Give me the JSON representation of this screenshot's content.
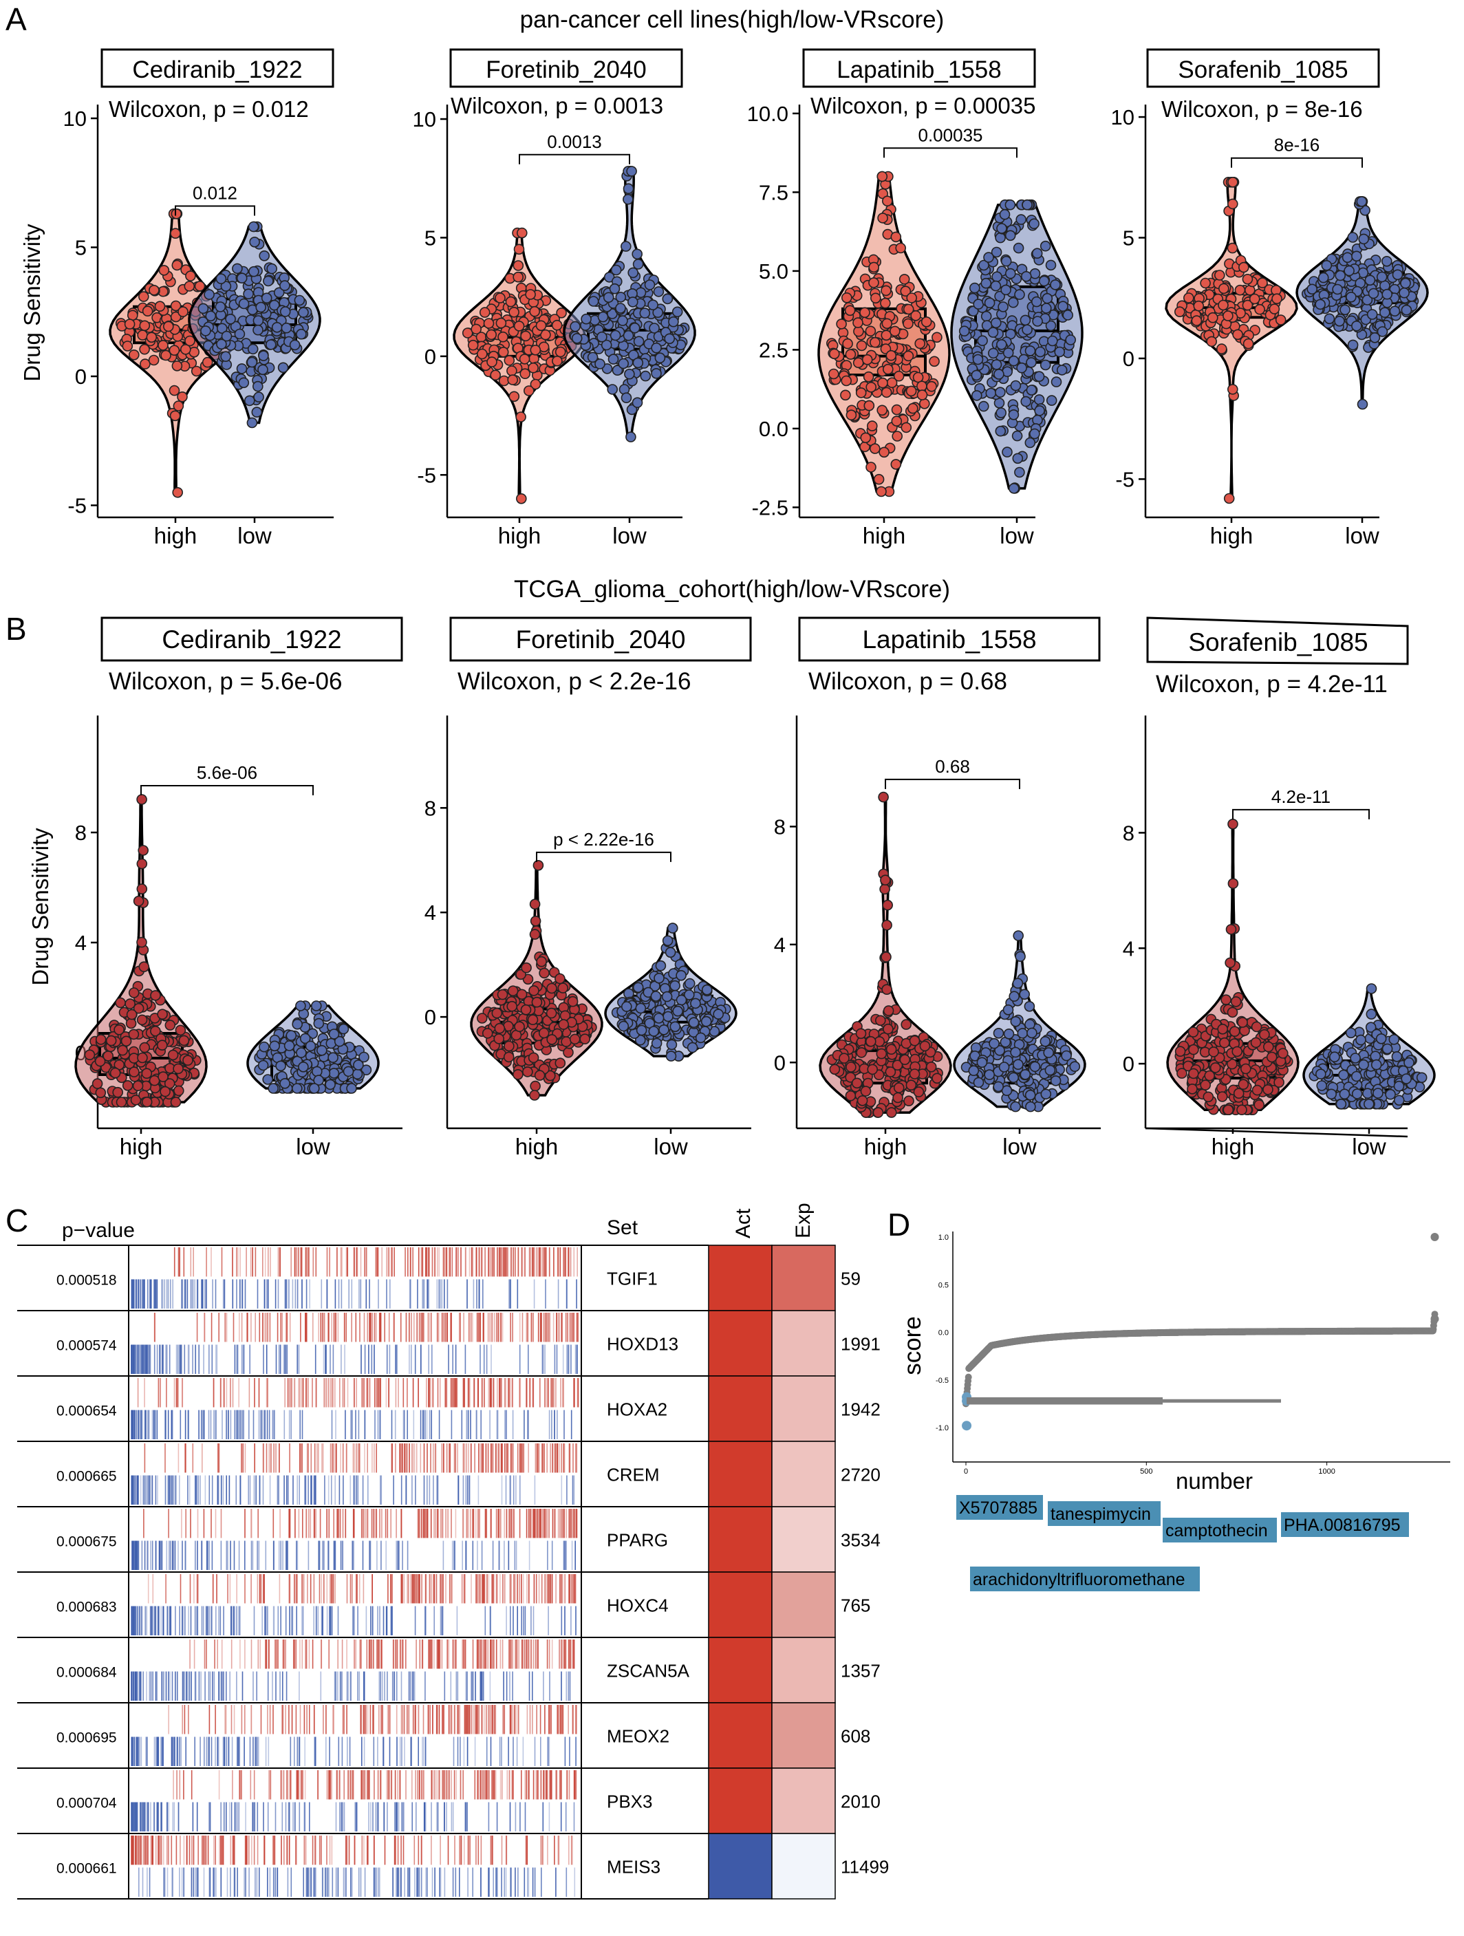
{
  "panel_letters": [
    "A",
    "B",
    "C",
    "D"
  ],
  "panelA": {
    "title": "pan-cancer cell lines(high/low-VRscore)",
    "ylabel": "Drug Sensitivity",
    "categories": [
      "high",
      "low"
    ],
    "colors": {
      "high": "#e0574a",
      "low": "#5a6fae",
      "high_box": "#e8876f",
      "low_box": "#7183b7"
    },
    "facets": [
      {
        "drug": "Cediranib_1922",
        "test": "Wilcoxon, p = 0.012",
        "bracket": "0.012",
        "ylim": [
          -5.2,
          10.8
        ],
        "yticks": [
          -5,
          0,
          5,
          10
        ],
        "yticklabels": [
          "-5",
          "0",
          "5",
          "10"
        ],
        "groups": [
          {
            "q1": 1.3,
            "median": 1.8,
            "q3": 2.7,
            "min": -4.5,
            "max": 6.3,
            "n": 130,
            "seed": 11
          },
          {
            "q1": 1.3,
            "median": 2.0,
            "q3": 3.0,
            "min": -1.8,
            "max": 5.8,
            "n": 200,
            "seed": 12
          }
        ],
        "bracket_y": 6.6
      },
      {
        "drug": "Foretinib_2040",
        "test": "Wilcoxon, p = 0.0013",
        "bracket": "0.0013",
        "ylim": [
          -6.5,
          10.9
        ],
        "yticks": [
          -5,
          0,
          5,
          10
        ],
        "yticklabels": [
          "-5",
          "0",
          "5",
          "10"
        ],
        "groups": [
          {
            "q1": 0.0,
            "median": 0.8,
            "q3": 1.3,
            "min": -6.0,
            "max": 5.2,
            "n": 180,
            "seed": 21
          },
          {
            "q1": 0.3,
            "median": 1.1,
            "q3": 1.8,
            "min": -3.4,
            "max": 7.8,
            "n": 190,
            "seed": 22
          }
        ],
        "bracket_y": 8.5
      },
      {
        "drug": "Lapatinib_1558",
        "test": "Wilcoxon, p = 0.00035",
        "bracket": "0.00035",
        "ylim": [
          -2.6,
          10.5
        ],
        "yticks": [
          -2.5,
          0,
          2.5,
          5,
          7.5,
          10
        ],
        "yticklabels": [
          "-2.5",
          "0.0",
          "2.5",
          "5.0",
          "7.5",
          "10.0"
        ],
        "groups": [
          {
            "q1": 1.7,
            "median": 2.3,
            "q3": 3.8,
            "min": -2.0,
            "max": 8.0,
            "n": 220,
            "seed": 31
          },
          {
            "q1": 2.1,
            "median": 3.1,
            "q3": 4.5,
            "min": -1.9,
            "max": 7.1,
            "n": 280,
            "seed": 32
          }
        ],
        "bracket_y": 8.9
      },
      {
        "drug": "Sorafenib_1085",
        "test": "Wilcoxon, p = 8e-16",
        "bracket": "8e-16",
        "ylim": [
          -6.3,
          10.8
        ],
        "yticks": [
          -5,
          0,
          5,
          10
        ],
        "yticklabels": [
          "-5",
          "0",
          "5",
          "10"
        ],
        "groups": [
          {
            "q1": 1.7,
            "median": 2.1,
            "q3": 2.7,
            "min": -5.8,
            "max": 7.3,
            "n": 150,
            "seed": 41
          },
          {
            "q1": 2.3,
            "median": 2.7,
            "q3": 3.6,
            "min": -1.9,
            "max": 6.5,
            "n": 220,
            "seed": 42
          }
        ],
        "bracket_y": 8.3
      }
    ]
  },
  "panelB": {
    "title": "TCGA_glioma_cohort(high/low-VRscore)",
    "ylabel": "Drug Sensitivity",
    "categories": [
      "high",
      "low"
    ],
    "colors": {
      "high": "#b53639",
      "low": "#5a6fae",
      "high_box": "#c76a6c",
      "low_box": "#8796c4"
    },
    "facets": [
      {
        "drug": "Cediranib_1922",
        "test": "Wilcoxon, p = 5.6e-06",
        "bracket": "5.6e-06",
        "ylim": [
          -2.5,
          12.5
        ],
        "yticks": [
          0,
          4,
          8
        ],
        "yticklabels": [
          "0",
          "4",
          "8"
        ],
        "groups": [
          {
            "q1": -0.8,
            "median": -0.2,
            "q3": 0.7,
            "min": -1.8,
            "max": 9.2,
            "n": 220,
            "seed": 51
          },
          {
            "q1": -1.0,
            "median": -0.4,
            "q3": 0.2,
            "min": -1.3,
            "max": 1.7,
            "n": 180,
            "seed": 52
          }
        ],
        "bracket_y": 9.7
      },
      {
        "drug": "Foretinib_2040",
        "test": "Wilcoxon, p < 2.2e-16",
        "bracket": "p < 2.22e-16",
        "ylim": [
          -4.0,
          11.8
        ],
        "yticks": [
          0,
          4,
          8
        ],
        "yticklabels": [
          "0",
          "4",
          "8"
        ],
        "groups": [
          {
            "q1": -1.0,
            "median": -0.2,
            "q3": 0.3,
            "min": -3.0,
            "max": 5.8,
            "n": 230,
            "seed": 61
          },
          {
            "q1": -0.2,
            "median": 0.2,
            "q3": 0.8,
            "min": -1.5,
            "max": 3.4,
            "n": 220,
            "seed": 62
          }
        ],
        "bracket_y": 6.3
      },
      {
        "drug": "Lapatinib_1558",
        "test": "Wilcoxon, p = 0.68",
        "bracket": "0.68",
        "ylim": [
          -2.0,
          12.0
        ],
        "yticks": [
          0,
          4,
          8
        ],
        "yticklabels": [
          "0",
          "4",
          "8"
        ],
        "groups": [
          {
            "q1": -0.7,
            "median": -0.1,
            "q3": 0.4,
            "min": -1.7,
            "max": 9.0,
            "n": 220,
            "seed": 71
          },
          {
            "q1": -0.7,
            "median": -0.1,
            "q3": 0.3,
            "min": -1.5,
            "max": 4.3,
            "n": 220,
            "seed": 72
          }
        ],
        "bracket_y": 9.6
      },
      {
        "drug": "Sorafenib_1085",
        "test": "Wilcoxon, p = 4.2e-11",
        "bracket": "4.2e-11",
        "ylim": [
          -2.0,
          12.3
        ],
        "yticks": [
          0,
          4,
          8
        ],
        "yticklabels": [
          "0",
          "4",
          "8"
        ],
        "groups": [
          {
            "q1": -0.5,
            "median": 0.1,
            "q3": 0.7,
            "min": -1.6,
            "max": 8.3,
            "n": 230,
            "seed": 81
          },
          {
            "q1": -0.9,
            "median": -0.4,
            "q3": 0.1,
            "min": -1.4,
            "max": 2.6,
            "n": 190,
            "seed": 82
          }
        ],
        "bracket_y": 8.8
      }
    ]
  },
  "panelC": {
    "header_pvalue": "p−value",
    "header_set": "Set",
    "header_act": "Act",
    "header_exp": "Exp",
    "rows": [
      {
        "pvalue": "0.000518",
        "set": "TGIF1",
        "count": "59",
        "act": "#d13b2c",
        "exp": "#d8695f"
      },
      {
        "pvalue": "0.000574",
        "set": "HOXD13",
        "count": "1991",
        "act": "#d13b2c",
        "exp": "#ecbcb8"
      },
      {
        "pvalue": "0.000654",
        "set": "HOXA2",
        "count": "1942",
        "act": "#d13b2c",
        "exp": "#ecbcb8"
      },
      {
        "pvalue": "0.000665",
        "set": "CREM",
        "count": "2720",
        "act": "#d13b2c",
        "exp": "#eec3bf"
      },
      {
        "pvalue": "0.000675",
        "set": "PPARG",
        "count": "3534",
        "act": "#d13b2c",
        "exp": "#f1cfcc"
      },
      {
        "pvalue": "0.000683",
        "set": "HOXC4",
        "count": "765",
        "act": "#d13b2c",
        "exp": "#e2a29b"
      },
      {
        "pvalue": "0.000684",
        "set": "ZSCAN5A",
        "count": "1357",
        "act": "#d13b2c",
        "exp": "#ebb8b3"
      },
      {
        "pvalue": "0.000695",
        "set": "MEOX2",
        "count": "608",
        "act": "#d13b2c",
        "exp": "#e09b94"
      },
      {
        "pvalue": "0.000704",
        "set": "PBX3",
        "count": "2010",
        "act": "#d13b2c",
        "exp": "#ecbcb8"
      },
      {
        "pvalue": "0.000661",
        "set": "MEIS3",
        "count": "11499",
        "act": "#3e5aa8",
        "exp": "#f2f5fb"
      }
    ]
  },
  "panelD": {
    "xlabel": "number",
    "ylabel": "score",
    "xticks": [
      0,
      500,
      1000
    ],
    "xticklabels": [
      "0",
      "500",
      "1000"
    ],
    "yticks": [
      -1.0,
      -0.5,
      0.0,
      0.5,
      1.0
    ],
    "yticklabels": [
      "-1.0",
      "-0.5",
      "0.0",
      "0.5",
      "1.0"
    ],
    "xlim": [
      -20,
      1340
    ],
    "ylim": [
      -1.08,
      1.08
    ],
    "n_points": 1300,
    "point_color": "#7f7f7f",
    "highlight_color": "#6a9ec2",
    "label_fill": "#4b8fb4",
    "labels": [
      {
        "text": "X5707885",
        "score": -0.68
      },
      {
        "text": "tanespimycin",
        "score": -0.7
      },
      {
        "text": "camptothecin",
        "score": -0.71
      },
      {
        "text": "PHA.00816795",
        "score": -0.71
      },
      {
        "text": "arachidonyltrifluoromethane",
        "score": -0.98
      }
    ]
  }
}
